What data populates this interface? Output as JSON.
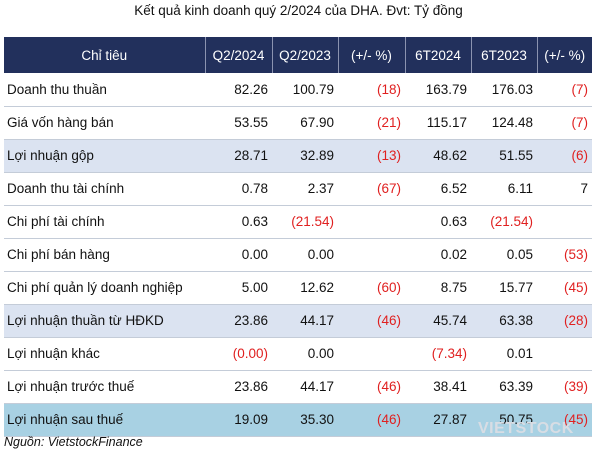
{
  "title": "Kết quả kinh doanh quý 2/2024 của DHA. Đvt: Tỷ đồng",
  "headers": [
    "Chỉ tiêu",
    "Q2/2024",
    "Q2/2023",
    "(+/- %)",
    "6T2024",
    "6T2023",
    "(+/- %)"
  ],
  "rows": [
    {
      "label": "Doanh thu thuần",
      "q2_2024": "82.26",
      "q2_2023": "100.79",
      "chg_q": "(18)",
      "h1_2024": "163.79",
      "h1_2023": "176.03",
      "chg_h": "(7)",
      "shade": "none"
    },
    {
      "label": "Giá vốn hàng bán",
      "q2_2024": "53.55",
      "q2_2023": "67.90",
      "chg_q": "(21)",
      "h1_2024": "115.17",
      "h1_2023": "124.48",
      "chg_h": "(7)",
      "shade": "none"
    },
    {
      "label": "Lợi nhuận gộp",
      "q2_2024": "28.71",
      "q2_2023": "32.89",
      "chg_q": "(13)",
      "h1_2024": "48.62",
      "h1_2023": "51.55",
      "chg_h": "(6)",
      "shade": "light"
    },
    {
      "label": "Doanh thu tài chính",
      "q2_2024": "0.78",
      "q2_2023": "2.37",
      "chg_q": "(67)",
      "h1_2024": "6.52",
      "h1_2023": "6.11",
      "chg_h": "7",
      "shade": "none"
    },
    {
      "label": "Chi phí tài chính",
      "q2_2024": "0.63",
      "q2_2023": "(21.54)",
      "chg_q": "",
      "h1_2024": "0.63",
      "h1_2023": "(21.54)",
      "chg_h": "",
      "shade": "none"
    },
    {
      "label": "Chi phí bán hàng",
      "q2_2024": "0.00",
      "q2_2023": "0.00",
      "chg_q": "",
      "h1_2024": "0.02",
      "h1_2023": "0.05",
      "chg_h": "(53)",
      "shade": "none"
    },
    {
      "label": "Chi phí quản lý doanh nghiệp",
      "q2_2024": "5.00",
      "q2_2023": "12.62",
      "chg_q": "(60)",
      "h1_2024": "8.75",
      "h1_2023": "15.77",
      "chg_h": "(45)",
      "shade": "none"
    },
    {
      "label": "Lợi nhuận thuần từ HĐKD",
      "q2_2024": "23.86",
      "q2_2023": "44.17",
      "chg_q": "(46)",
      "h1_2024": "45.74",
      "h1_2023": "63.38",
      "chg_h": "(28)",
      "shade": "light"
    },
    {
      "label": "Lợi nhuận khác",
      "q2_2024": "(0.00)",
      "q2_2023": "0.00",
      "chg_q": "",
      "h1_2024": "(7.34)",
      "h1_2023": "0.01",
      "chg_h": "",
      "shade": "none"
    },
    {
      "label": "Lợi nhuận trước thuế",
      "q2_2024": "23.86",
      "q2_2023": "44.17",
      "chg_q": "(46)",
      "h1_2024": "38.41",
      "h1_2023": "63.39",
      "chg_h": "(39)",
      "shade": "none"
    },
    {
      "label": "Lợi nhuận sau thuế",
      "q2_2024": "19.09",
      "q2_2023": "35.30",
      "chg_q": "(46)",
      "h1_2024": "27.87",
      "h1_2023": "50.75",
      "chg_h": "(45)",
      "shade": "strong"
    }
  ],
  "source": "Nguồn: VietstockFinance",
  "watermark": "VIETSTOCK",
  "colors": {
    "header_bg": "#22305c",
    "negative": "#e02020",
    "shade_light": "#dbe3f1",
    "shade_strong": "#a8d1e3"
  }
}
